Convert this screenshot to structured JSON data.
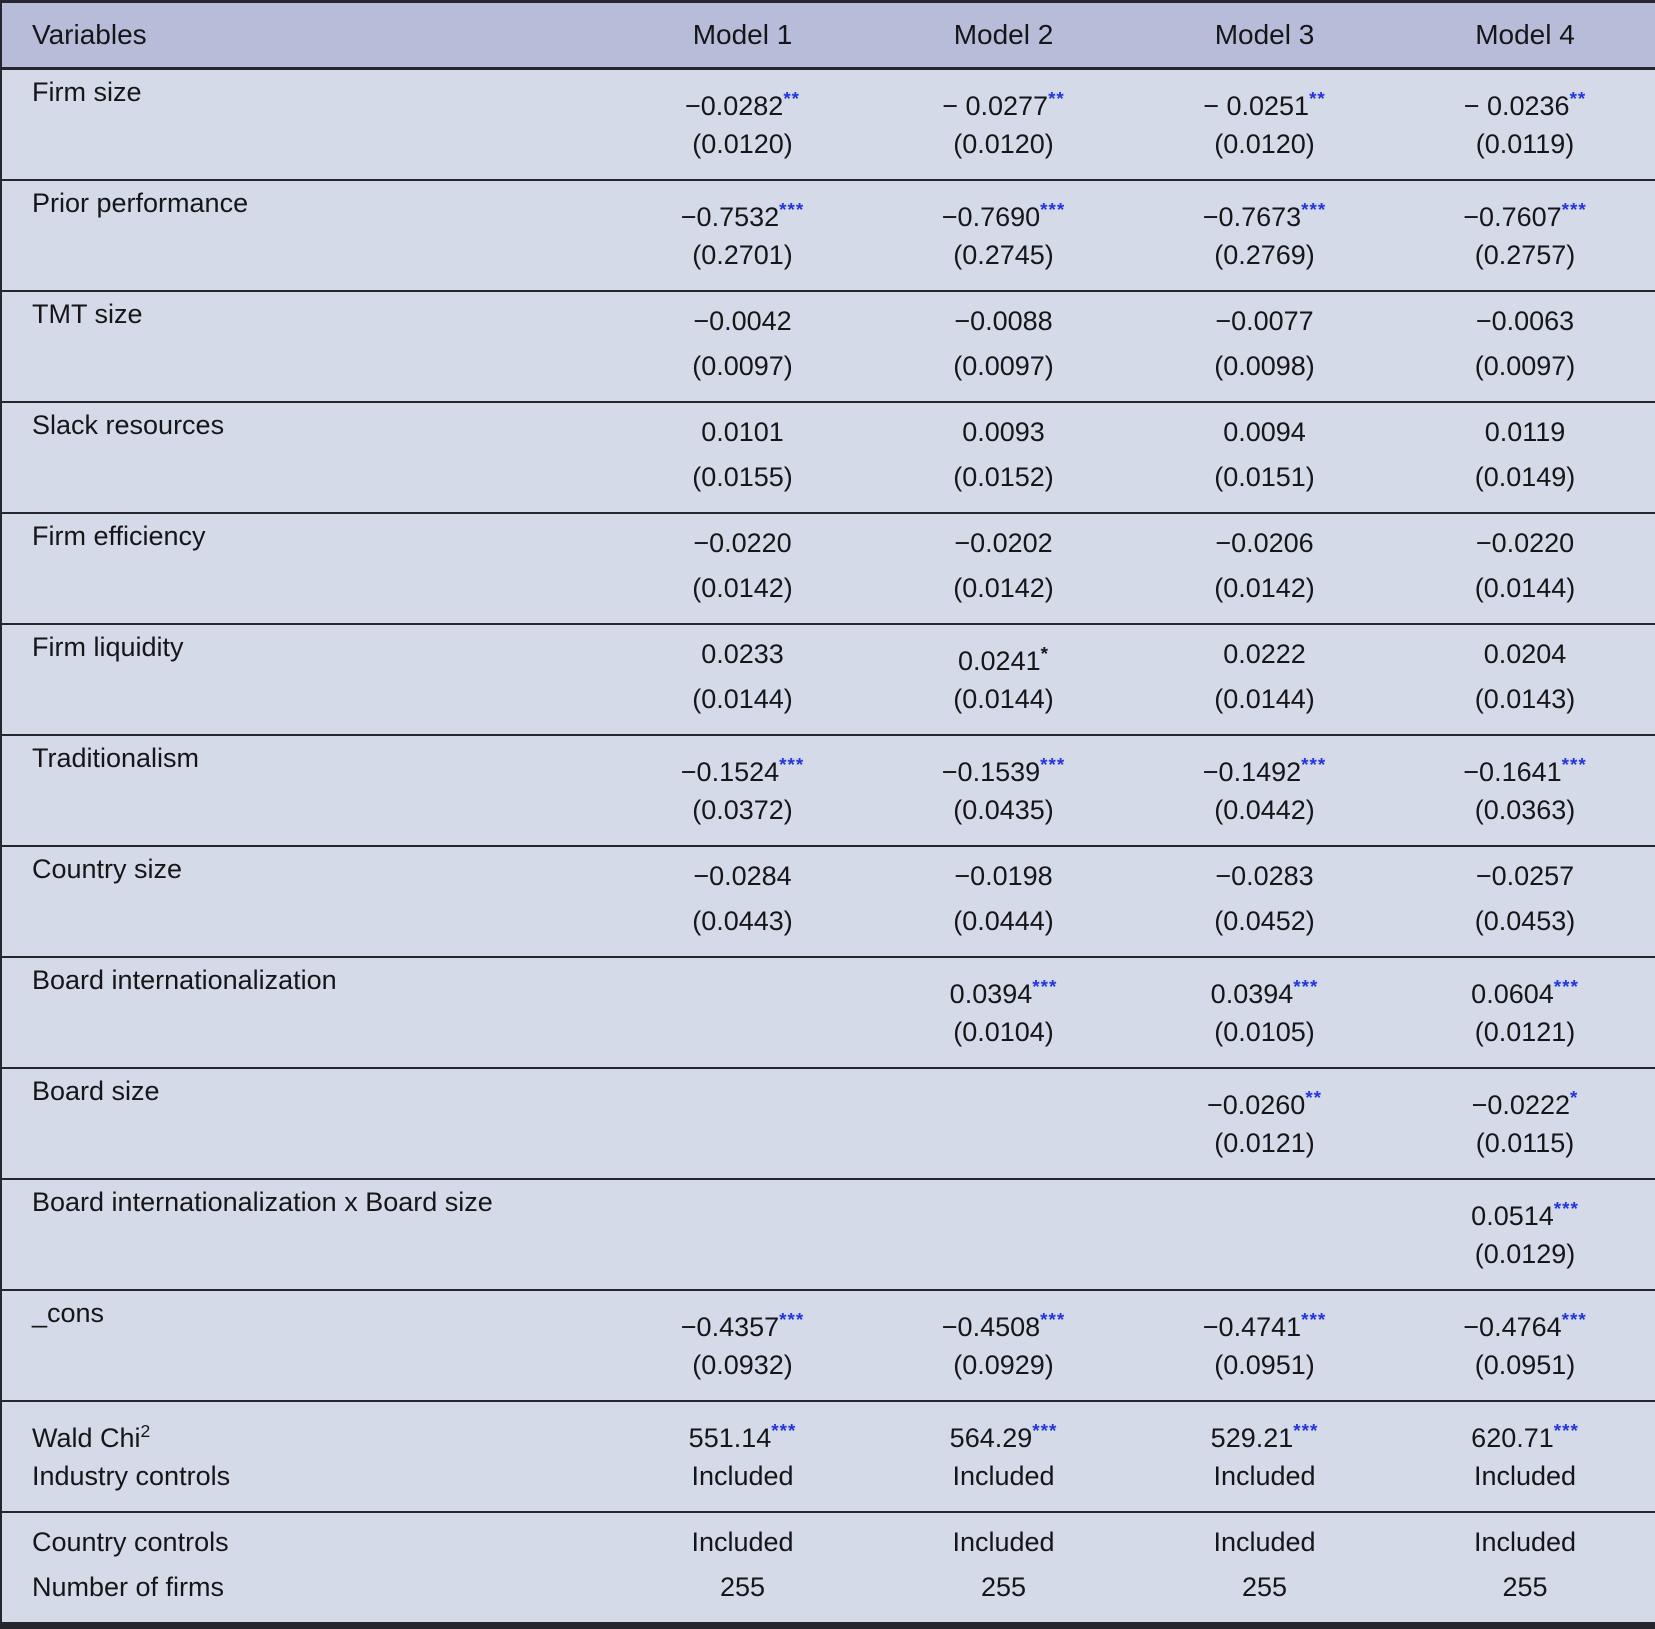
{
  "colors": {
    "header_bg": "#b7bdd8",
    "row_bg": "#d5dae8",
    "text": "#16161a",
    "border": "#26262e",
    "star_blue": "#2334dd"
  },
  "table": {
    "columns": [
      "Variables",
      "Model 1",
      "Model 2",
      "Model 3",
      "Model 4"
    ],
    "rows": [
      {
        "label": "Firm size",
        "cells": [
          {
            "coef": "−0.0282",
            "stars": "**",
            "star_color": "blue",
            "se": "(0.0120)"
          },
          {
            "coef": "− 0.0277",
            "stars": "**",
            "star_color": "blue",
            "se": "(0.0120)"
          },
          {
            "coef": "− 0.0251",
            "stars": "**",
            "star_color": "blue",
            "se": "(0.0120)"
          },
          {
            "coef": "− 0.0236",
            "stars": "**",
            "star_color": "blue",
            "se": "(0.0119)"
          }
        ]
      },
      {
        "label": "Prior performance",
        "cells": [
          {
            "coef": "−0.7532",
            "stars": "***",
            "star_color": "blue",
            "se": "(0.2701)"
          },
          {
            "coef": "−0.7690",
            "stars": "***",
            "star_color": "blue",
            "se": "(0.2745)"
          },
          {
            "coef": "−0.7673",
            "stars": "***",
            "star_color": "blue",
            "se": "(0.2769)"
          },
          {
            "coef": "−0.7607",
            "stars": "***",
            "star_color": "blue",
            "se": "(0.2757)"
          }
        ]
      },
      {
        "label": "TMT size",
        "cells": [
          {
            "coef": "−0.0042",
            "se": "(0.0097)"
          },
          {
            "coef": "−0.0088",
            "se": "(0.0097)"
          },
          {
            "coef": "−0.0077",
            "se": "(0.0098)"
          },
          {
            "coef": "−0.0063",
            "se": "(0.0097)"
          }
        ]
      },
      {
        "label": "Slack resources",
        "cells": [
          {
            "coef": "0.0101",
            "se": "(0.0155)"
          },
          {
            "coef": "0.0093",
            "se": "(0.0152)"
          },
          {
            "coef": "0.0094",
            "se": "(0.0151)"
          },
          {
            "coef": "0.0119",
            "se": "(0.0149)"
          }
        ]
      },
      {
        "label": "Firm efficiency",
        "cells": [
          {
            "coef": "−0.0220",
            "se": "(0.0142)"
          },
          {
            "coef": "−0.0202",
            "se": "(0.0142)"
          },
          {
            "coef": "−0.0206",
            "se": "(0.0142)"
          },
          {
            "coef": "−0.0220",
            "se": "(0.0144)"
          }
        ]
      },
      {
        "label": "Firm liquidity",
        "cells": [
          {
            "coef": "0.0233",
            "se": "(0.0144)"
          },
          {
            "coef": "0.0241",
            "stars": "*",
            "star_color": "black",
            "se": "(0.0144)"
          },
          {
            "coef": "0.0222",
            "se": "(0.0144)"
          },
          {
            "coef": "0.0204",
            "se": "(0.0143)"
          }
        ]
      },
      {
        "label": "Traditionalism",
        "cells": [
          {
            "coef": "−0.1524",
            "stars": "***",
            "star_color": "blue",
            "se": "(0.0372)"
          },
          {
            "coef": "−0.1539",
            "stars": "***",
            "star_color": "blue",
            "se": "(0.0435)"
          },
          {
            "coef": "−0.1492",
            "stars": "***",
            "star_color": "blue",
            "se": "(0.0442)"
          },
          {
            "coef": "−0.1641",
            "stars": "***",
            "star_color": "blue",
            "se": "(0.0363)"
          }
        ]
      },
      {
        "label": "Country size",
        "cells": [
          {
            "coef": "−0.0284",
            "se": "(0.0443)"
          },
          {
            "coef": "−0.0198",
            "se": "(0.0444)"
          },
          {
            "coef": "−0.0283",
            "se": "(0.0452)"
          },
          {
            "coef": "−0.0257",
            "se": "(0.0453)"
          }
        ]
      },
      {
        "label": "Board internationalization",
        "cells": [
          null,
          {
            "coef": "0.0394",
            "stars": "***",
            "star_color": "blue",
            "se": "(0.0104)"
          },
          {
            "coef": "0.0394",
            "stars": "***",
            "star_color": "blue",
            "se": "(0.0105)"
          },
          {
            "coef": "0.0604",
            "stars": "***",
            "star_color": "blue",
            "se": "(0.0121)"
          }
        ]
      },
      {
        "label": "Board size",
        "cells": [
          null,
          null,
          {
            "coef": "−0.0260",
            "stars": "**",
            "star_color": "blue",
            "se": "(0.0121)"
          },
          {
            "coef": "−0.0222",
            "stars": "*",
            "star_color": "blue",
            "se": "(0.0115)"
          }
        ]
      },
      {
        "label": "Board internationalization x Board size",
        "cells": [
          null,
          null,
          null,
          {
            "coef": "0.0514",
            "stars": "***",
            "star_color": "blue",
            "se": "(0.0129)"
          }
        ]
      },
      {
        "label": "_cons",
        "cells": [
          {
            "coef": "−0.4357",
            "stars": "***",
            "star_color": "blue",
            "se": "(0.0932)"
          },
          {
            "coef": "−0.4508",
            "stars": "***",
            "star_color": "blue",
            "se": "(0.0929)"
          },
          {
            "coef": "−0.4741",
            "stars": "***",
            "star_color": "blue",
            "se": "(0.0951)"
          },
          {
            "coef": "−0.4764",
            "stars": "***",
            "star_color": "blue",
            "se": "(0.0951)"
          }
        ]
      }
    ],
    "stat_rows": [
      {
        "lines": [
          {
            "label": "Wald Chi",
            "label_sup": "2",
            "values": [
              {
                "v": "551.14",
                "stars": "***",
                "star_color": "blue"
              },
              {
                "v": "564.29",
                "stars": "***",
                "star_color": "blue"
              },
              {
                "v": "529.21",
                "stars": "***",
                "star_color": "blue"
              },
              {
                "v": "620.71",
                "stars": "***",
                "star_color": "blue"
              }
            ]
          },
          {
            "label": "Industry controls",
            "values": [
              {
                "v": "Included"
              },
              {
                "v": "Included"
              },
              {
                "v": "Included"
              },
              {
                "v": "Included"
              }
            ]
          }
        ]
      },
      {
        "lines": [
          {
            "label": "Country controls",
            "values": [
              {
                "v": "Included"
              },
              {
                "v": "Included"
              },
              {
                "v": "Included"
              },
              {
                "v": "Included"
              }
            ]
          },
          {
            "label": "Number of firms",
            "values": [
              {
                "v": "255"
              },
              {
                "v": "255"
              },
              {
                "v": "255"
              },
              {
                "v": "255"
              }
            ]
          }
        ]
      }
    ]
  }
}
